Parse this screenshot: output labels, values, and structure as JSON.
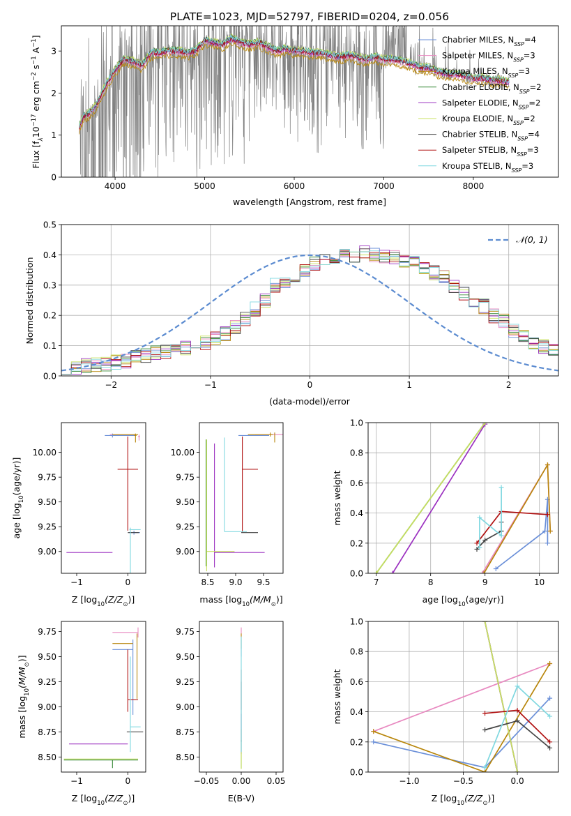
{
  "figure_title": "PLATE=1023, MJD=52797, FIBERID=0204, z=0.056",
  "models": [
    {
      "key": "chab_miles",
      "legend": "Chabrier MILES, N",
      "nssp": "=4",
      "color": "#6a8fd8"
    },
    {
      "key": "salp_miles",
      "legend": "Salpeter MILES, N",
      "nssp": "=3",
      "color": "#e889c0"
    },
    {
      "key": "krou_miles",
      "legend": "Kroupa MILES, N",
      "nssp": "=3",
      "color": "#b8860b"
    },
    {
      "key": "chab_elodie",
      "legend": "Chabrier ELODIE, N",
      "nssp": "=2",
      "color": "#3a8a3a"
    },
    {
      "key": "salp_elodie",
      "legend": "Salpeter ELODIE, N",
      "nssp": "=2",
      "color": "#9b30c0"
    },
    {
      "key": "krou_elodie",
      "legend": "Kroupa ELODIE, N",
      "nssp": "=2",
      "color": "#c8e060"
    },
    {
      "key": "chab_stelib",
      "legend": "Chabrier STELIB, N",
      "nssp": "=4",
      "color": "#444444"
    },
    {
      "key": "salp_stelib",
      "legend": "Salpeter STELIB, N",
      "nssp": "=3",
      "color": "#b01010"
    },
    {
      "key": "krou_stelib",
      "legend": "Kroupa STELIB, N",
      "nssp": "=3",
      "color": "#80d8e0"
    }
  ],
  "legend_sub": "SSP",
  "chart_data": [
    {
      "id": "spectrum",
      "type": "line",
      "xlabel": "wavelength [Angstrom, rest frame]",
      "ylabel_main": "Flux [f",
      "ylabel_sub": "λ",
      "ylabel_rest": "10",
      "ylabel_exp1": "−17",
      "ylabel_mid": " erg cm",
      "ylabel_exp2": "−2",
      "ylabel_mid2": " s",
      "ylabel_exp3": "−1",
      "ylabel_mid3": " A",
      "ylabel_exp4": "−1",
      "ylabel_end": "]",
      "xlim": [
        3400,
        8950
      ],
      "ylim": [
        0,
        3.6
      ],
      "xticks": [
        4000,
        5000,
        6000,
        7000,
        8000
      ],
      "xtick_labels": [
        "4000",
        "5000",
        "6000",
        "7000",
        "8000"
      ],
      "yticks": [
        0,
        1,
        2,
        3
      ],
      "ytick_labels": [
        "0",
        "1",
        "2",
        "3"
      ],
      "data_color": "#808080",
      "model_continuum": {
        "x": [
          3600,
          3650,
          3700,
          3750,
          3800,
          3900,
          4000,
          4100,
          4200,
          4300,
          4400,
          4500,
          4600,
          4700,
          4800,
          4900,
          5000,
          5100,
          5200,
          5300,
          5400,
          5500,
          5600,
          5700,
          5800,
          5900,
          6000,
          6100,
          6200,
          6300,
          6400,
          6500,
          6600,
          6700,
          6800,
          6900,
          7000,
          7100,
          7200,
          7300,
          7400,
          7500,
          7600,
          7700,
          7800,
          7900,
          8000,
          8100,
          8200,
          8300,
          8400
        ],
        "y": [
          1.2,
          1.45,
          1.5,
          1.6,
          1.75,
          2.2,
          2.55,
          2.8,
          2.75,
          2.65,
          2.95,
          2.95,
          3.0,
          3.0,
          2.95,
          3.0,
          3.25,
          3.2,
          3.15,
          3.3,
          3.2,
          3.15,
          3.2,
          3.1,
          3.0,
          3.05,
          3.0,
          3.0,
          2.95,
          2.95,
          2.9,
          2.85,
          2.9,
          2.85,
          2.8,
          2.85,
          2.8,
          2.8,
          2.75,
          2.7,
          2.6,
          2.6,
          2.5,
          2.45,
          2.45,
          2.4,
          2.35,
          2.35,
          2.3,
          2.3,
          2.25
        ]
      }
    },
    {
      "id": "residuals",
      "type": "histogram",
      "xlabel": "(data-model)/error",
      "ylabel": "Normed distribution",
      "xlim": [
        -2.5,
        2.5
      ],
      "ylim": [
        0,
        0.5
      ],
      "xticks": [
        -2,
        -1,
        0,
        1,
        2
      ],
      "xtick_labels": [
        "−2",
        "−1",
        "0",
        "1",
        "2"
      ],
      "yticks": [
        0,
        0.1,
        0.2,
        0.3,
        0.4,
        0.5
      ],
      "ytick_labels": [
        "0.0",
        "0.1",
        "0.2",
        "0.3",
        "0.4",
        "0.5"
      ],
      "grid": true,
      "reference_label": "𝒩(0, 1)",
      "reference_color": "#5b8bd0",
      "bin_width": 0.1,
      "bin_start": -2.5,
      "histogram_base": [
        0.025,
        0.03,
        0.035,
        0.035,
        0.04,
        0.045,
        0.05,
        0.06,
        0.065,
        0.075,
        0.08,
        0.085,
        0.09,
        0.1,
        0.11,
        0.125,
        0.14,
        0.16,
        0.19,
        0.22,
        0.25,
        0.3,
        0.31,
        0.33,
        0.35,
        0.37,
        0.38,
        0.39,
        0.4,
        0.4,
        0.41,
        0.4,
        0.395,
        0.39,
        0.38,
        0.37,
        0.36,
        0.34,
        0.33,
        0.3,
        0.27,
        0.24,
        0.23,
        0.2,
        0.18,
        0.15,
        0.13,
        0.11,
        0.095,
        0.08
      ]
    },
    {
      "id": "age_vs_Z",
      "type": "errorbar",
      "xlabel_pre": "Z [log",
      "xlabel_sub": "10",
      "xlabel_mid": "(Z/Z",
      "xlabel_sub2": "⊙",
      "xlabel_end": ")]",
      "ylabel_pre": "age  [log",
      "ylabel_sub": "10",
      "ylabel_end": "(age/yr)]",
      "xlim": [
        -1.3,
        0.35
      ],
      "ylim": [
        8.78,
        10.3
      ],
      "xticks": [
        -1,
        0
      ],
      "xtick_labels": [
        "−1",
        "0"
      ],
      "yticks": [
        9.0,
        9.25,
        9.5,
        9.75,
        10.0
      ],
      "ytick_labels": [
        "9.00",
        "9.25",
        "9.50",
        "9.75",
        "10.00"
      ]
    },
    {
      "id": "age_vs_mass",
      "type": "errorbar",
      "xlabel_pre": "mass [log",
      "xlabel_sub": "10",
      "xlabel_mid": "(M/M",
      "xlabel_sub2": "⊙",
      "xlabel_end": ")]",
      "xlim": [
        8.35,
        9.85
      ],
      "ylim": [
        8.78,
        10.3
      ],
      "xticks": [
        8.5,
        9.0,
        9.5
      ],
      "xtick_labels": [
        "8.5",
        "9.0",
        "9.5"
      ],
      "yticks": [
        9.0,
        9.25,
        9.5,
        9.75,
        10.0
      ],
      "ytick_labels": [
        "9.00",
        "9.25",
        "9.50",
        "9.75",
        "10.00"
      ]
    },
    {
      "id": "weight_vs_age",
      "type": "line",
      "xlabel_pre": "age  [log",
      "xlabel_sub": "10",
      "xlabel_end": "(age/yr)]",
      "ylabel": "mass weight",
      "xlim": [
        6.85,
        10.35
      ],
      "ylim": [
        0,
        1.0
      ],
      "xticks": [
        7,
        8,
        9,
        10
      ],
      "xtick_labels": [
        "7",
        "8",
        "9",
        "10"
      ],
      "yticks": [
        0,
        0.2,
        0.4,
        0.6,
        0.8,
        1.0
      ],
      "ytick_labels": [
        "0.0",
        "0.2",
        "0.4",
        "0.6",
        "0.8",
        "1.0"
      ],
      "grid": true
    },
    {
      "id": "mass_vs_Z",
      "type": "errorbar",
      "xlabel_pre": "Z [log",
      "xlabel_sub": "10",
      "xlabel_mid": "(Z/Z",
      "xlabel_sub2": "⊙",
      "xlabel_end": ")]",
      "ylabel_pre": "mass [log",
      "ylabel_sub": "10",
      "ylabel_mid": "(M/M",
      "ylabel_sub2": "⊙",
      "ylabel_end": ")]",
      "xlim": [
        -1.3,
        0.35
      ],
      "ylim": [
        8.35,
        9.85
      ],
      "xticks": [
        -1,
        0
      ],
      "xtick_labels": [
        "−1",
        "0"
      ],
      "yticks": [
        8.5,
        8.75,
        9.0,
        9.25,
        9.5,
        9.75
      ],
      "ytick_labels": [
        "8.50",
        "8.75",
        "9.00",
        "9.25",
        "9.50",
        "9.75"
      ]
    },
    {
      "id": "mass_vs_ebv",
      "type": "errorbar",
      "xlabel": "E(B-V)",
      "xlim": [
        -0.06,
        0.06
      ],
      "ylim": [
        8.35,
        9.85
      ],
      "xticks": [
        -0.05,
        0,
        0.05
      ],
      "xtick_labels": [
        "−0.05",
        "0.00",
        "0.05"
      ],
      "yticks": [
        8.5,
        8.75,
        9.0,
        9.25,
        9.5,
        9.75
      ],
      "ytick_labels": [
        "8.50",
        "8.75",
        "9.00",
        "9.25",
        "9.50",
        "9.75"
      ]
    },
    {
      "id": "weight_vs_Z",
      "type": "line",
      "xlabel_pre": "Z [log",
      "xlabel_sub": "10",
      "xlabel_mid": "(Z/Z",
      "xlabel_sub2": "⊙",
      "xlabel_end": ")]",
      "ylabel": "mass weight",
      "xlim": [
        -1.38,
        0.38
      ],
      "ylim": [
        0,
        1.0
      ],
      "xticks": [
        -1.0,
        -0.5,
        0.0
      ],
      "xtick_labels": [
        "−1.0",
        "−0.5",
        "0.0"
      ],
      "yticks": [
        0,
        0.2,
        0.4,
        0.6,
        0.8,
        1.0
      ],
      "ytick_labels": [
        "0.0",
        "0.2",
        "0.4",
        "0.6",
        "0.8",
        "1.0"
      ],
      "grid": true
    }
  ],
  "weights_vs_age": {
    "chab_miles": [
      [
        9.2,
        0.03
      ],
      [
        10.1,
        0.28
      ],
      [
        10.15,
        0.49
      ],
      [
        10.15,
        0.2
      ]
    ],
    "salp_miles": [
      [
        8.95,
        0.0
      ],
      [
        10.15,
        0.72
      ],
      [
        10.2,
        0.28
      ]
    ],
    "krou_miles": [
      [
        8.98,
        0.0
      ],
      [
        10.15,
        0.72
      ],
      [
        10.2,
        0.28
      ]
    ],
    "chab_elodie": [
      [
        7.0,
        0.0
      ],
      [
        9.0,
        1.0
      ]
    ],
    "salp_elodie": [
      [
        7.3,
        0.0
      ],
      [
        9.0,
        0.99
      ]
    ],
    "krou_elodie": [
      [
        7.0,
        0.0
      ],
      [
        9.0,
        1.0
      ]
    ],
    "chab_stelib": [
      [
        8.85,
        0.16
      ],
      [
        9.0,
        0.22
      ],
      [
        9.3,
        0.28
      ],
      [
        9.3,
        0.34
      ]
    ],
    "salp_stelib": [
      [
        8.85,
        0.2
      ],
      [
        9.3,
        0.41
      ],
      [
        10.15,
        0.39
      ]
    ],
    "krou_stelib": [
      [
        8.9,
        0.17
      ],
      [
        8.9,
        0.37
      ],
      [
        9.3,
        0.25
      ],
      [
        9.3,
        0.57
      ]
    ]
  },
  "weights_vs_Z": {
    "chab_miles": [
      [
        -1.33,
        0.2
      ],
      [
        -0.3,
        0.03
      ],
      [
        0.3,
        0.49
      ]
    ],
    "salp_miles": [
      [
        -1.33,
        0.27
      ],
      [
        0.3,
        0.72
      ]
    ],
    "krou_miles": [
      [
        -1.33,
        0.27
      ],
      [
        -0.3,
        0.0
      ],
      [
        0.3,
        0.72
      ]
    ],
    "chab_elodie": [
      [
        -0.3,
        1.0
      ],
      [
        0.0,
        0.0
      ]
    ],
    "salp_elodie": [
      [
        -0.3,
        1.0
      ],
      [
        0.0,
        0.0
      ]
    ],
    "krou_elodie": [
      [
        -0.3,
        1.0
      ],
      [
        0.0,
        0.0
      ]
    ],
    "chab_stelib": [
      [
        -0.3,
        0.28
      ],
      [
        0.0,
        0.34
      ],
      [
        0.3,
        0.16
      ]
    ],
    "salp_stelib": [
      [
        -0.3,
        0.39
      ],
      [
        0.0,
        0.41
      ],
      [
        0.3,
        0.2
      ]
    ],
    "krou_stelib": [
      [
        -0.3,
        0.03
      ],
      [
        0.0,
        0.57
      ],
      [
        0.3,
        0.37
      ]
    ]
  },
  "errorbars_age_Z": {
    "chab_miles": [
      [
        -0.3,
        10.17,
        0.15,
        0.45,
        0.02,
        0.02
      ],
      [
        0.12,
        9.19,
        0.1,
        0.12,
        0.02,
        0.02
      ]
    ],
    "salp_miles": [
      [
        -0.3,
        10.18,
        0.05,
        0.45,
        0.0,
        0.0
      ],
      [
        0.22,
        10.16,
        0.02,
        0.02,
        0.04,
        0.02
      ]
    ],
    "krou_miles": [
      [
        -0.3,
        10.18,
        0.0,
        0.5,
        0.0,
        0.0
      ],
      [
        0.15,
        10.17,
        0.02,
        0.02,
        0.07,
        0.02
      ]
    ],
    "chab_elodie": [
      [
        -0.3,
        9.0,
        0.0,
        0.0,
        0.0,
        0.0
      ]
    ],
    "salp_elodie": [
      [
        -0.3,
        8.99,
        0.9,
        0.0,
        0.0,
        0.0
      ]
    ],
    "krou_elodie": [
      [
        -0.3,
        9.0,
        0.0,
        0.0,
        0.0,
        0.0
      ]
    ],
    "chab_stelib": [
      [
        0.1,
        9.19,
        0.1,
        0.12,
        0.0,
        0.0
      ]
    ],
    "salp_stelib": [
      [
        0.0,
        9.83,
        0.2,
        0.2,
        0.62,
        0.33
      ]
    ],
    "krou_stelib": [
      [
        0.05,
        9.22,
        0.02,
        0.2,
        0.95,
        0.02
      ]
    ]
  },
  "errorbars_age_mass": {
    "chab_miles": [
      [
        9.05,
        10.17,
        0.0,
        0.55,
        0.0,
        0.0
      ]
    ],
    "salp_miles": [
      [
        9.7,
        10.18,
        0.35,
        0.2,
        0.02,
        0.02
      ]
    ],
    "krou_miles": [
      [
        9.62,
        10.18,
        0.4,
        0.05,
        0.02,
        0.02
      ],
      [
        9.7,
        10.15,
        0.0,
        0.0,
        0.05,
        0.05
      ]
    ],
    "chab_elodie": [
      [
        8.47,
        9.0,
        0.0,
        0.0,
        0.15,
        1.13
      ]
    ],
    "salp_elodie": [
      [
        8.62,
        8.99,
        0.0,
        0.9,
        0.15,
        1.1
      ]
    ],
    "krou_elodie": [
      [
        8.48,
        9.0,
        0.0,
        0.5,
        0.2,
        1.13
      ]
    ],
    "chab_stelib": [
      [
        9.2,
        9.19,
        0.1,
        0.2,
        0.0,
        0.0
      ]
    ],
    "salp_stelib": [
      [
        9.12,
        9.83,
        0.0,
        0.28,
        0.63,
        0.33
      ]
    ],
    "krou_stelib": [
      [
        8.8,
        9.2,
        0.0,
        0.4,
        0.0,
        0.95
      ]
    ]
  },
  "errorbars_mass_Z": {
    "chab_miles": [
      [
        -0.3,
        9.57,
        0.0,
        0.4,
        0.0,
        0.0
      ],
      [
        0.1,
        9.57,
        0.0,
        0.0,
        0.65,
        0.1
      ]
    ],
    "salp_miles": [
      [
        -0.3,
        9.74,
        0.0,
        0.5,
        0.0,
        0.0
      ],
      [
        0.2,
        9.74,
        0.0,
        0.0,
        0.05,
        0.05
      ]
    ],
    "krou_miles": [
      [
        -0.3,
        9.63,
        0.0,
        0.4,
        0.0,
        0.0
      ],
      [
        0.18,
        9.63,
        0.0,
        0.0,
        0.55,
        0.1
      ]
    ],
    "chab_elodie": [
      [
        -0.3,
        8.47,
        0.95,
        0.5,
        0.08,
        0.0
      ]
    ],
    "salp_elodie": [
      [
        -0.3,
        8.63,
        0.85,
        0.3,
        0.0,
        0.0
      ]
    ],
    "krou_elodie": [
      [
        -0.3,
        8.48,
        0.95,
        0.5,
        0.0,
        0.0
      ]
    ],
    "chab_stelib": [
      [
        0.1,
        8.75,
        0.12,
        0.2,
        0.0,
        0.0
      ]
    ],
    "salp_stelib": [
      [
        0.0,
        9.07,
        0.0,
        0.2,
        0.12,
        0.5
      ]
    ],
    "krou_stelib": [
      [
        0.05,
        8.8,
        0.0,
        0.2,
        0.25,
        0.7
      ]
    ]
  },
  "errorbars_mass_ebv": {
    "chab_miles": [
      [
        0.0,
        9.57,
        0.0,
        0.0,
        0.07,
        0.1
      ]
    ],
    "salp_miles": [
      [
        0.0,
        9.74,
        0.0,
        0.0,
        0.06,
        0.05
      ]
    ],
    "krou_miles": [
      [
        0.0,
        9.63,
        0.0,
        0.0,
        0.05,
        0.1
      ]
    ],
    "chab_elodie": [
      [
        0.0,
        8.47,
        0.0,
        0.0,
        0.08,
        0.2
      ]
    ],
    "salp_elodie": [
      [
        0.0,
        8.63,
        0.0,
        0.0,
        0.1,
        0.3
      ]
    ],
    "krou_elodie": [
      [
        0.0,
        8.48,
        0.0,
        0.0,
        0.1,
        0.3
      ]
    ],
    "chab_stelib": [
      [
        0.0,
        8.75,
        0.0,
        0.0,
        0.1,
        0.5
      ]
    ],
    "salp_stelib": [
      [
        0.0,
        9.07,
        0.0,
        0.0,
        0.1,
        0.3
      ]
    ],
    "krou_stelib": [
      [
        0.0,
        8.8,
        0.0,
        0.0,
        0.25,
        0.9
      ]
    ]
  }
}
